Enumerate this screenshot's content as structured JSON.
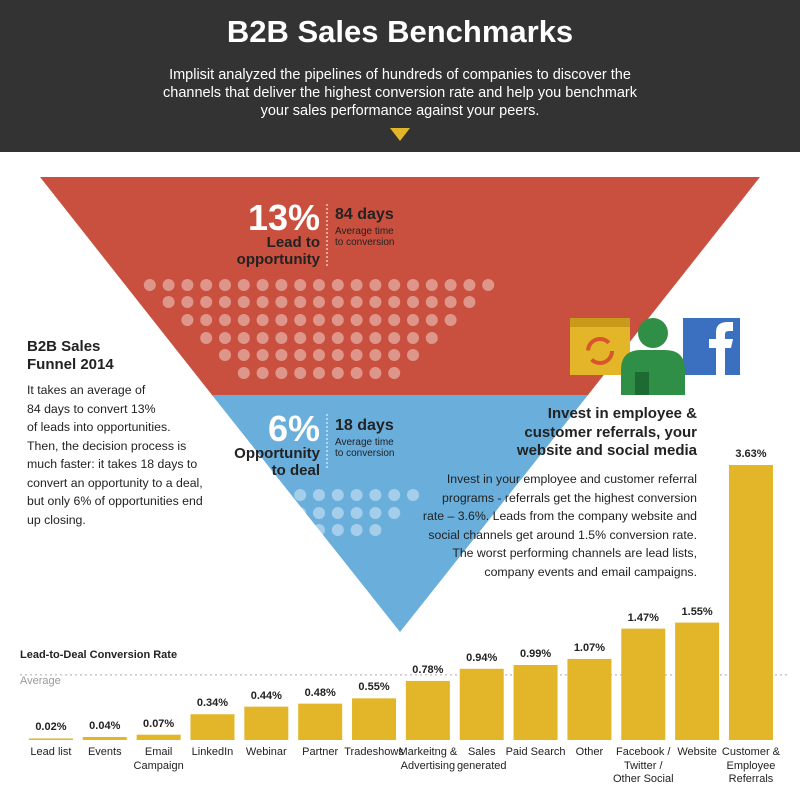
{
  "header": {
    "title": "B2B Sales Benchmarks",
    "subtitle": "Implisit analyzed the pipelines of hundreds of companies to discover the\nchannels that deliver the highest conversion rate and help you benchmark\nyour sales performance against your peers."
  },
  "funnel": {
    "stage1": {
      "percent": "13%",
      "label": "Lead to\nopportunity",
      "days": "84 days",
      "note": "Average time\nto conversion"
    },
    "stage2": {
      "percent": "6%",
      "label": "Opportunity\nto deal",
      "days": "18 days",
      "note": "Average time\nto conversion"
    }
  },
  "sidebar": {
    "title": "B2B Sales\nFunnel 2014",
    "text": "It takes an average of\n84 days to convert 13%\nof leads into opportunities.\nThen, the decision process is\nmuch faster: it takes 18 days to\nconvert an opportunity to a deal,\nbut only 6% of opportunities end\nup closing."
  },
  "callout": {
    "title": "Invest in employee &\ncustomer referrals, your\nwebsite and social media",
    "text": "Invest in your employee and customer referral\nprograms - referrals get the highest conversion\nrate – 3.6%. Leads from the company website and\nsocial channels get around 1.5% conversion rate.\nThe worst performing channels are lead lists,\ncompany events and email campaigns."
  },
  "chart_data": {
    "type": "bar",
    "title": "Lead-to-Deal Conversion Rate",
    "categories": [
      "Lead list",
      "Events",
      "Email\nCampaign",
      "LinkedIn",
      "Webinar",
      "Partner",
      "Tradeshows",
      "Markeitng &\nAdvertising",
      "Sales\ngenerated",
      "Paid Search",
      "Other",
      "Facebook /\nTwitter /\nOther Social",
      "Website",
      "Customer &\nEmployee\nReferrals"
    ],
    "values": [
      0.02,
      0.04,
      0.07,
      0.34,
      0.44,
      0.48,
      0.55,
      0.78,
      0.94,
      0.99,
      1.07,
      1.47,
      1.55,
      3.63
    ],
    "value_labels": [
      "0.02%",
      "0.04%",
      "0.07%",
      "0.34%",
      "0.44%",
      "0.48%",
      "0.55%",
      "0.78%",
      "0.94%",
      "0.99%",
      "1.07%",
      "1.47%",
      "1.55%",
      "3.63%"
    ],
    "color": "#e2b628",
    "ylim": [
      0,
      4
    ],
    "average": 0.86,
    "average_label": "Average"
  }
}
